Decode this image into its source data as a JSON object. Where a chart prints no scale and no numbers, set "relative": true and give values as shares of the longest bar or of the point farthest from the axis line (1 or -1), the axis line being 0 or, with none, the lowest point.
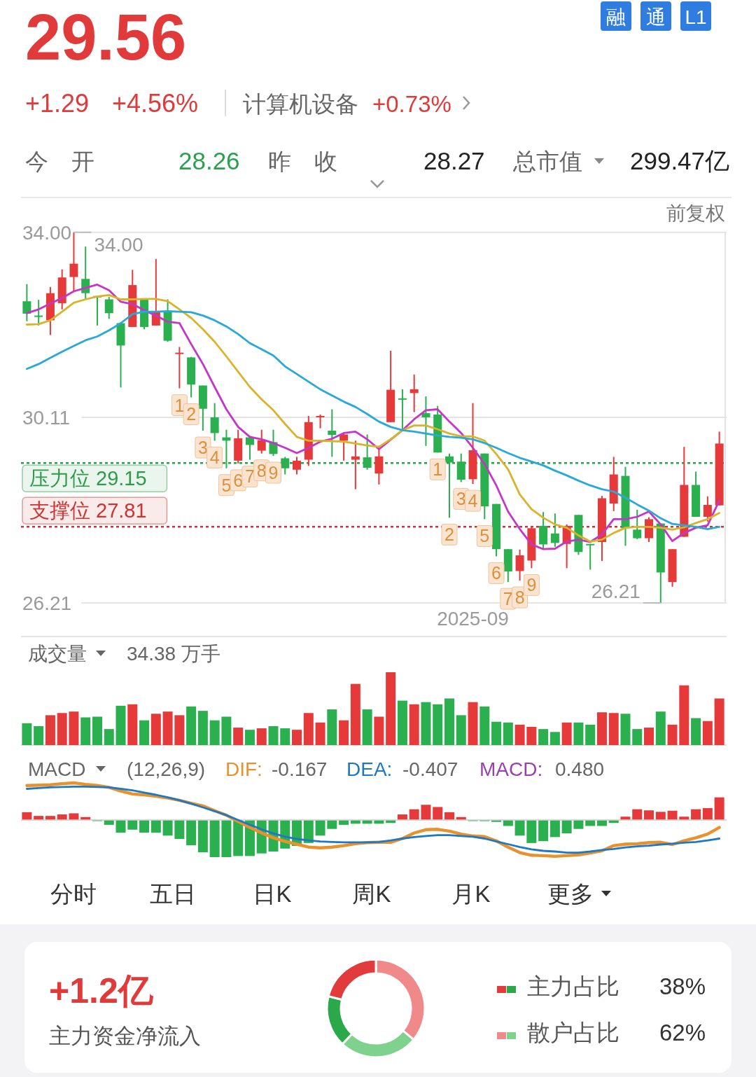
{
  "chart_data": [
    {
      "type": "other",
      "title": "29.56",
      "annotations": [
        "+1.29",
        "+4.56%",
        "计算机设备",
        "+0.73%",
        "融",
        "通",
        "L1",
        "今　开",
        "28.26",
        "昨　收",
        "28.27",
        "总市值",
        "299.47亿"
      ]
    },
    {
      "type": "candlestick",
      "annotations": [
        "前复权",
        "34.00",
        "26.21",
        "1",
        "2",
        "3",
        "4",
        "5",
        "6",
        "7",
        "8",
        "9",
        "1",
        "2",
        "3",
        "4",
        "5",
        "6",
        "7",
        "8",
        "9"
      ],
      "categories": [
        null,
        null,
        null,
        null,
        null,
        null,
        null,
        null,
        null,
        null,
        null,
        null,
        null,
        null,
        null,
        null,
        null,
        null,
        null,
        null,
        null,
        null,
        null,
        null,
        null,
        null,
        null,
        null,
        null,
        null,
        null,
        null,
        null,
        null,
        null,
        null,
        null,
        null,
        "2025-09",
        null,
        null,
        null,
        null,
        null,
        null,
        null,
        null,
        null,
        null,
        null,
        null,
        null,
        null,
        null,
        null,
        null,
        null,
        null,
        null,
        null
      ],
      "ohlc": [
        [
          32.55,
          32.91,
          32.13,
          32.29
        ],
        [
          32.25,
          32.58,
          32.04,
          32.23
        ],
        [
          32.15,
          32.85,
          31.84,
          32.72
        ],
        [
          32.51,
          33.22,
          32.38,
          33.05
        ],
        [
          33.06,
          34.0,
          32.75,
          33.34
        ],
        [
          33.02,
          33.7,
          32.59,
          32.72
        ],
        [
          32.66,
          32.67,
          32.04,
          32.64
        ],
        [
          32.59,
          32.64,
          32.18,
          32.3
        ],
        [
          32.09,
          32.09,
          30.74,
          31.62
        ],
        [
          32.01,
          33.21,
          32.01,
          32.89
        ],
        [
          32.6,
          32.6,
          31.96,
          32.01
        ],
        [
          32.04,
          33.44,
          32.04,
          32.32
        ],
        [
          32.35,
          32.59,
          31.7,
          31.72
        ],
        [
          31.45,
          31.59,
          30.72,
          31.47
        ],
        [
          31.37,
          31.38,
          30.53,
          30.8
        ],
        [
          30.78,
          30.78,
          29.83,
          30.29
        ],
        [
          30.11,
          30.41,
          29.62,
          29.78
        ],
        [
          29.69,
          29.85,
          29.04,
          29.62
        ],
        [
          29.2,
          29.85,
          29.14,
          29.67
        ],
        [
          29.69,
          29.72,
          29.22,
          29.53
        ],
        [
          29.41,
          29.85,
          29.35,
          29.63
        ],
        [
          29.59,
          29.85,
          29.3,
          29.34
        ],
        [
          29.25,
          29.28,
          28.91,
          29.04
        ],
        [
          29.01,
          29.28,
          28.91,
          29.2
        ],
        [
          29.22,
          30.14,
          29.09,
          30.01
        ],
        [
          30.12,
          30.17,
          29.88,
          30.14
        ],
        [
          29.83,
          30.28,
          29.28,
          29.74
        ],
        [
          29.62,
          29.78,
          29.2,
          29.75
        ],
        [
          29.22,
          29.62,
          28.6,
          29.29
        ],
        [
          29.27,
          29.75,
          29.01,
          29.05
        ],
        [
          28.93,
          29.51,
          28.7,
          29.29
        ],
        [
          30.01,
          31.51,
          30.01,
          30.69
        ],
        [
          30.51,
          30.7,
          29.83,
          30.5
        ],
        [
          30.62,
          31.01,
          30.22,
          30.7
        ],
        [
          30.2,
          30.55,
          29.51,
          30.11
        ],
        [
          30.17,
          30.35,
          29.37,
          29.37
        ],
        [
          29.29,
          29.35,
          28.0,
          29.16
        ],
        [
          29.18,
          29.35,
          28.75,
          28.8
        ],
        [
          28.81,
          30.41,
          28.71,
          29.42
        ],
        [
          29.35,
          29.35,
          27.97,
          28.24
        ],
        [
          28.29,
          28.29,
          27.19,
          27.34
        ],
        [
          27.34,
          27.34,
          26.65,
          26.87
        ],
        [
          26.88,
          27.33,
          26.68,
          27.21
        ],
        [
          27.1,
          27.83,
          26.94,
          27.78
        ],
        [
          27.83,
          28.12,
          27.33,
          27.44
        ],
        [
          27.67,
          28.09,
          27.39,
          27.47
        ],
        [
          27.45,
          27.86,
          26.94,
          27.83
        ],
        [
          28.06,
          28.06,
          27.22,
          27.28
        ],
        [
          27.45,
          27.45,
          26.91,
          27.43
        ],
        [
          27.49,
          28.46,
          27.09,
          28.41
        ],
        [
          28.3,
          29.28,
          28.14,
          28.91
        ],
        [
          28.88,
          29.07,
          27.41,
          27.78
        ],
        [
          27.75,
          28.17,
          27.55,
          27.57
        ],
        [
          27.57,
          28.01,
          27.49,
          27.97
        ],
        [
          27.88,
          27.88,
          26.21,
          26.85
        ],
        [
          26.65,
          27.34,
          26.55,
          27.34
        ],
        [
          27.6,
          29.49,
          27.6,
          28.69
        ],
        [
          28.69,
          28.97,
          28.02,
          28.02
        ],
        [
          28.02,
          28.45,
          27.92,
          28.27
        ],
        [
          28.26,
          29.81,
          28.26,
          29.56
        ]
      ],
      "series": [
        {
          "type": "line",
          "color": "#c735c7",
          "values": [
            32.3,
            32.38,
            32.5,
            32.62,
            32.76,
            32.83,
            32.9,
            32.78,
            32.54,
            32.49,
            32.36,
            32.25,
            32.12,
            32.09,
            31.65,
            31.23,
            30.75,
            30.28,
            29.91,
            29.7,
            29.65,
            29.57,
            29.47,
            29.36,
            29.47,
            29.6,
            29.66,
            29.78,
            29.81,
            29.65,
            29.44,
            29.64,
            29.84,
            30.07,
            30.26,
            30.28,
            30.02,
            29.78,
            29.47,
            29.13,
            28.68,
            28.13,
            27.76,
            27.44,
            27.34,
            27.35,
            27.5,
            27.54,
            27.49,
            27.65,
            27.97,
            27.97,
            28.02,
            28.13,
            27.86,
            27.51,
            27.68,
            27.79,
            27.84,
            28.36
          ]
        },
        {
          "type": "line",
          "color": "#d9b42a",
          "values": [
            32.06,
            32.07,
            32.15,
            32.33,
            32.52,
            32.59,
            32.65,
            32.68,
            32.59,
            32.59,
            32.6,
            32.6,
            32.55,
            32.38,
            32.2,
            31.96,
            31.7,
            31.39,
            31.07,
            30.75,
            30.49,
            30.26,
            29.97,
            29.7,
            29.62,
            29.62,
            29.61,
            29.6,
            29.56,
            29.52,
            29.49,
            29.65,
            29.84,
            29.94,
            29.94,
            29.86,
            29.77,
            29.71,
            29.71,
            29.62,
            29.34,
            29.02,
            28.49,
            28.18,
            28.0,
            27.86,
            27.79,
            27.63,
            27.5,
            27.54,
            27.68,
            27.79,
            27.81,
            27.81,
            27.79,
            27.75,
            27.8,
            27.89,
            27.97,
            28.1
          ]
        },
        {
          "type": "line",
          "color": "#2aa8d8",
          "values": [
            31.13,
            31.23,
            31.36,
            31.49,
            31.61,
            31.73,
            31.81,
            31.94,
            32.09,
            32.28,
            32.33,
            32.33,
            32.34,
            32.33,
            32.32,
            32.25,
            32.15,
            32.02,
            31.86,
            31.67,
            31.54,
            31.41,
            31.18,
            31.02,
            30.86,
            30.7,
            30.57,
            30.44,
            30.33,
            30.18,
            30.02,
            29.91,
            29.84,
            29.81,
            29.77,
            29.73,
            29.7,
            29.68,
            29.65,
            29.57,
            29.47,
            29.36,
            29.26,
            29.18,
            29.1,
            28.99,
            28.89,
            28.78,
            28.68,
            28.6,
            28.55,
            28.42,
            28.28,
            28.15,
            27.99,
            27.87,
            27.84,
            27.81,
            27.76,
            27.81
          ]
        }
      ],
      "ylim": [
        26.21,
        34.0
      ],
      "yticks": [
        {
          "value": 34.0,
          "label": "34.00"
        },
        30.11,
        26.21
      ],
      "grid": "y",
      "ref_lines": [
        {
          "axis": "y",
          "value": 29.15,
          "label": "压力位 29.15",
          "color": "#2e9b4a",
          "line_style": "dotted"
        },
        {
          "axis": "y",
          "value": 27.81,
          "label": "支撑位 27.81",
          "color": "#cc3333",
          "line_style": "dotted"
        }
      ]
    },
    {
      "type": "bar",
      "title": "成交量",
      "subtitle": "34.38 万手",
      "relative": true,
      "categories": [
        null,
        null,
        null,
        null,
        null,
        null,
        null,
        null,
        null,
        null,
        null,
        null,
        null,
        null,
        null,
        null,
        null,
        null,
        null,
        null,
        null,
        null,
        null,
        null,
        null,
        null,
        null,
        null,
        null,
        null,
        null,
        null,
        null,
        null,
        null,
        null,
        null,
        null,
        null,
        null,
        null,
        null,
        null,
        null,
        null,
        null,
        null,
        null,
        null,
        null,
        null,
        null,
        null,
        null,
        null,
        null,
        null,
        null,
        null,
        null
      ],
      "values": [
        0.3,
        0.26,
        0.41,
        0.44,
        0.46,
        0.38,
        0.39,
        0.22,
        0.54,
        0.56,
        0.34,
        0.43,
        0.46,
        0.41,
        0.53,
        0.47,
        0.34,
        0.39,
        0.24,
        0.21,
        0.23,
        0.26,
        0.23,
        0.21,
        0.44,
        0.31,
        0.49,
        0.34,
        0.84,
        0.49,
        0.39,
        1,
        0.61,
        0.56,
        0.59,
        0.56,
        0.64,
        0.41,
        0.59,
        0.53,
        0.32,
        0.31,
        0.28,
        0.25,
        0.22,
        0.18,
        0.31,
        0.31,
        0.28,
        0.45,
        0.44,
        0.43,
        0.22,
        0.24,
        0.46,
        0.28,
        0.82,
        0.37,
        0.33,
        0.64
      ],
      "colors": [
        "#2bb04f",
        "#2bb04f",
        "#e6393a",
        "#e6393a",
        "#e6393a",
        "#2bb04f",
        "#2bb04f",
        "#2bb04f",
        "#2bb04f",
        "#e6393a",
        "#2bb04f",
        "#e6393a",
        "#e6393a",
        "#e6393a",
        "#2bb04f",
        "#2bb04f",
        "#2bb04f",
        "#2bb04f",
        "#e6393a",
        "#2bb04f",
        "#e6393a",
        "#2bb04f",
        "#2bb04f",
        "#e6393a",
        "#e6393a",
        "#e6393a",
        "#2bb04f",
        "#e6393a",
        "#e6393a",
        "#2bb04f",
        "#e6393a",
        "#e6393a",
        "#2bb04f",
        "#e6393a",
        "#2bb04f",
        "#2bb04f",
        "#2bb04f",
        "#2bb04f",
        "#e6393a",
        "#2bb04f",
        "#2bb04f",
        "#2bb04f",
        "#e6393a",
        "#e6393a",
        "#2bb04f",
        "#2bb04f",
        "#e6393a",
        "#2bb04f",
        "#2bb04f",
        "#e6393a",
        "#e6393a",
        "#2bb04f",
        "#2bb04f",
        "#e6393a",
        "#2bb04f",
        "#e6393a",
        "#e6393a",
        "#2bb04f",
        "#e6393a",
        "#e6393a"
      ]
    },
    {
      "type": "line",
      "title": "MACD",
      "subtitle": "(12,26,9)",
      "relative": true,
      "annotations": [
        "-0.167",
        "-0.407"
      ],
      "categories": [
        null,
        null,
        null,
        null,
        null,
        null,
        null,
        null,
        null,
        null,
        null,
        null,
        null,
        null,
        null,
        null,
        null,
        null,
        null,
        null,
        null,
        null,
        null,
        null,
        null,
        null,
        null,
        null,
        null,
        null,
        null,
        null,
        null,
        null,
        null,
        null,
        null,
        null,
        null,
        null,
        null,
        null,
        null,
        null,
        null,
        null,
        null,
        null,
        null,
        null,
        null,
        null,
        null,
        null,
        null,
        null,
        null,
        null,
        null,
        null
      ],
      "series": [
        {
          "name": "DIF:",
          "color": "#e8922e",
          "values": [
            0.93,
            0.94,
            0.95,
            0.98,
            1.0,
            0.96,
            0.93,
            0.88,
            0.78,
            0.7,
            0.68,
            0.64,
            0.59,
            0.53,
            0.45,
            0.38,
            0.25,
            0.13,
            -0.04,
            -0.2,
            -0.35,
            -0.48,
            -0.58,
            -0.65,
            -0.73,
            -0.75,
            -0.73,
            -0.69,
            -0.64,
            -0.61,
            -0.6,
            -0.6,
            -0.5,
            -0.35,
            -0.26,
            -0.25,
            -0.3,
            -0.38,
            -0.43,
            -0.45,
            -0.56,
            -0.73,
            -0.88,
            -0.95,
            -0.96,
            -0.98,
            -0.96,
            -0.94,
            -0.89,
            -0.83,
            -0.69,
            -0.65,
            -0.64,
            -0.61,
            -0.6,
            -0.66,
            -0.56,
            -0.48,
            -0.38,
            -0.2
          ]
        },
        {
          "name": "DEA:",
          "color": "#1f78c4",
          "values": [
            0.84,
            0.86,
            0.88,
            0.89,
            0.9,
            0.9,
            0.89,
            0.88,
            0.84,
            0.8,
            0.74,
            0.68,
            0.61,
            0.53,
            0.44,
            0.34,
            0.24,
            0.13,
            0.0,
            -0.13,
            -0.25,
            -0.36,
            -0.45,
            -0.51,
            -0.55,
            -0.58,
            -0.59,
            -0.6,
            -0.6,
            -0.6,
            -0.59,
            -0.55,
            -0.5,
            -0.46,
            -0.43,
            -0.41,
            -0.41,
            -0.43,
            -0.45,
            -0.5,
            -0.58,
            -0.65,
            -0.73,
            -0.79,
            -0.83,
            -0.85,
            -0.88,
            -0.88,
            -0.85,
            -0.81,
            -0.78,
            -0.74,
            -0.71,
            -0.69,
            -0.66,
            -0.64,
            -0.61,
            -0.59,
            -0.55,
            -0.5
          ]
        }
      ]
    },
    {
      "type": "bar",
      "relative": true,
      "annotations": [
        "0.480"
      ],
      "categories": [
        null,
        null,
        null,
        null,
        null,
        null,
        null,
        null,
        null,
        null,
        null,
        null,
        null,
        null,
        null,
        null,
        null,
        null,
        null,
        null,
        null,
        null,
        null,
        null,
        null,
        null,
        null,
        null,
        null,
        null,
        null,
        null,
        null,
        null,
        null,
        null,
        null,
        null,
        null,
        null,
        null,
        null,
        null,
        null,
        null,
        null,
        null,
        null,
        null,
        null,
        null,
        null,
        null,
        null,
        null,
        null,
        null,
        null,
        null,
        null
      ],
      "series": [
        {
          "name": "MACD:",
          "color": "#9a3fb0",
          "values": [
            0.21,
            0.11,
            0.11,
            0.15,
            0.18,
            0.08,
            0,
            -0.13,
            -0.34,
            -0.26,
            -0.34,
            -0.34,
            -0.42,
            -0.51,
            -0.68,
            -0.87,
            -1,
            -1,
            -0.97,
            -0.97,
            -0.9,
            -0.85,
            -0.77,
            -0.7,
            -0.62,
            -0.42,
            -0.24,
            -0.13,
            -0.1,
            -0.1,
            -0.1,
            -0.08,
            0.15,
            0.29,
            0.41,
            0.35,
            0.21,
            0.08,
            0,
            -0.03,
            -0.05,
            -0.16,
            -0.42,
            -0.62,
            -0.57,
            -0.46,
            -0.36,
            -0.24,
            -0.16,
            -0.16,
            -0.08,
            0.09,
            0.29,
            0.26,
            0.22,
            0.25,
            0.09,
            0.29,
            0.32,
            0.61
          ],
          "colors": [
            "#e6393a",
            "#e6393a",
            "#e6393a",
            "#e6393a",
            "#e6393a",
            "#e6393a",
            "#2bb04f",
            "#2bb04f",
            "#2bb04f",
            "#2bb04f",
            "#2bb04f",
            "#2bb04f",
            "#2bb04f",
            "#2bb04f",
            "#2bb04f",
            "#2bb04f",
            "#2bb04f",
            "#2bb04f",
            "#2bb04f",
            "#2bb04f",
            "#2bb04f",
            "#2bb04f",
            "#2bb04f",
            "#2bb04f",
            "#2bb04f",
            "#2bb04f",
            "#2bb04f",
            "#2bb04f",
            "#2bb04f",
            "#2bb04f",
            "#2bb04f",
            "#2bb04f",
            "#e6393a",
            "#e6393a",
            "#e6393a",
            "#e6393a",
            "#e6393a",
            "#e6393a",
            "#2bb04f",
            "#2bb04f",
            "#2bb04f",
            "#2bb04f",
            "#2bb04f",
            "#2bb04f",
            "#2bb04f",
            "#2bb04f",
            "#2bb04f",
            "#2bb04f",
            "#2bb04f",
            "#2bb04f",
            "#2bb04f",
            "#e6393a",
            "#e6393a",
            "#e6393a",
            "#e6393a",
            "#e6393a",
            "#e6393a",
            "#e6393a",
            "#e6393a",
            "#e6393a"
          ]
        }
      ]
    },
    {
      "type": "other",
      "annotations": [
        "分时",
        "五日",
        "日K",
        "周K",
        "月K",
        "更多"
      ]
    },
    {
      "type": "donut",
      "title": "+1.2亿",
      "subtitle": "主力资金净流入",
      "categories": [
        null,
        null,
        null,
        null
      ],
      "values": [
        36,
        26,
        17,
        21
      ],
      "colors": [
        "#f08a8a",
        "#7fd18e",
        "#2aa84a",
        "#e23b3b"
      ],
      "annotations": [
        "主力占比",
        "38%",
        "散户占比",
        "62%"
      ]
    }
  ]
}
